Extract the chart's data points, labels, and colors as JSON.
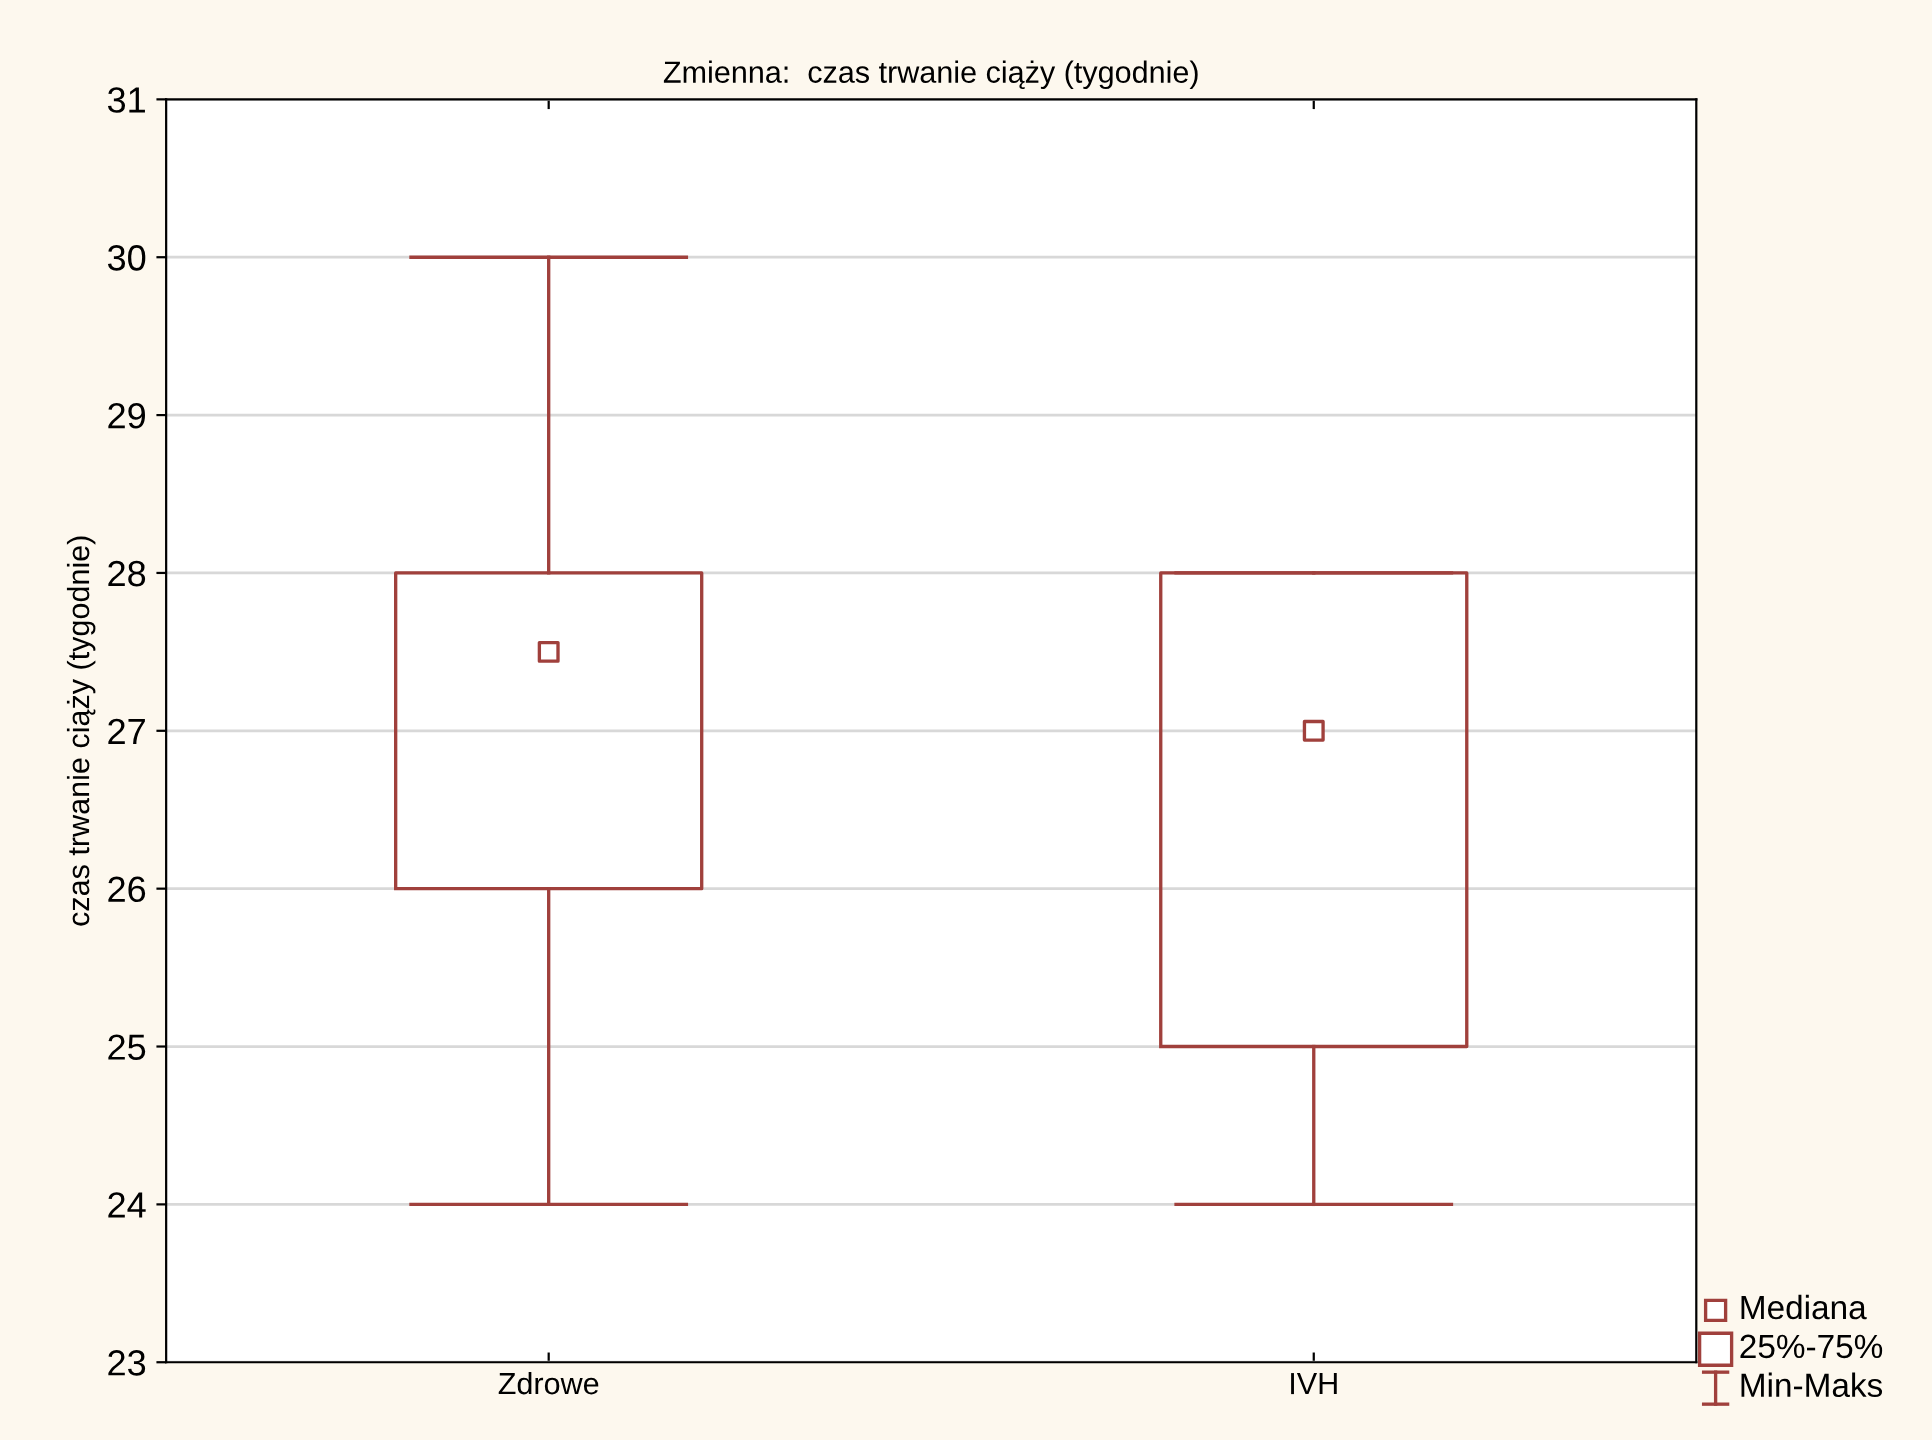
{
  "chart_data": {
    "type": "box",
    "title": "Zmienna:  czas trwanie ciąży (tygodnie)",
    "ylabel": "czas trwanie ciąży (tygodnie)",
    "categories": [
      "Zdrowe",
      "IVH"
    ],
    "boxes": [
      {
        "low": 24,
        "q1": 26,
        "median": 27.5,
        "q3": 28,
        "high": 30
      },
      {
        "low": 24,
        "q1": 25,
        "median": 27,
        "q3": 28,
        "high": 28
      }
    ],
    "color": "#a0403c",
    "ylim": [
      23,
      31
    ],
    "yticks": [
      23,
      24,
      25,
      26,
      27,
      28,
      29,
      30,
      31
    ],
    "grid": "y",
    "annotations": [
      "Mediana",
      "25%-75%",
      "Min-Maks"
    ]
  }
}
